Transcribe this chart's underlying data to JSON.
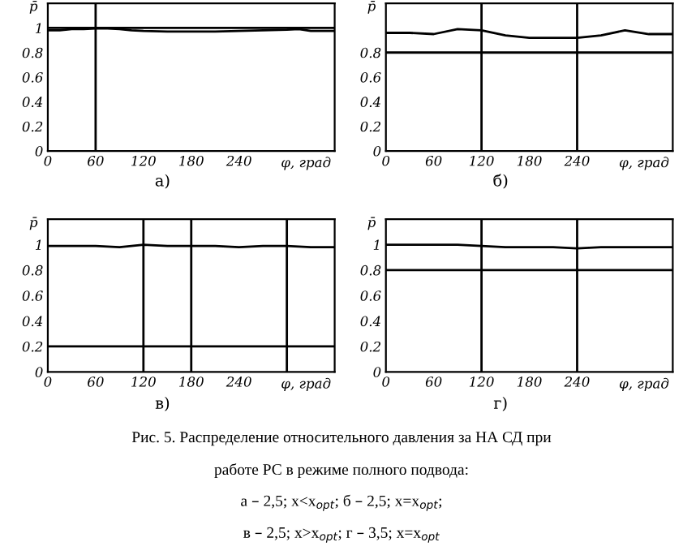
{
  "chart_data": [
    {
      "type": "line",
      "title": "а)",
      "xlabel": "φ, град",
      "ylabel": "p̄",
      "x": [
        0,
        15,
        30,
        45,
        60,
        75,
        90,
        105,
        120,
        150,
        180,
        210,
        240,
        270,
        300,
        315,
        330,
        345,
        360
      ],
      "series": [
        {
          "color": "#000000",
          "values": [
            0.98,
            0.98,
            0.99,
            0.99,
            0.995,
            0.995,
            0.99,
            0.98,
            0.975,
            0.97,
            0.97,
            0.97,
            0.975,
            0.98,
            0.985,
            0.99,
            0.975,
            0.975,
            0.975
          ]
        }
      ],
      "xlim": [
        0,
        360
      ],
      "xticks": [
        0,
        60,
        120,
        180,
        240
      ],
      "ylim": [
        0,
        1.2
      ],
      "yticks": [
        0,
        0.2,
        0.4,
        0.6,
        0.8,
        1
      ],
      "ref_lines": [
        {
          "axis": "x",
          "value": 60,
          "color": "#000000"
        },
        {
          "axis": "y",
          "value": 1,
          "color": "#000000"
        }
      ],
      "grid": false,
      "legend": false,
      "marker": "none",
      "line_style": "solid",
      "annotations": [
        "Рис. 5. Распределение относительного давления за НА СД при",
        "работе РС в режиме полного подвода:",
        "а – 2,5; x<x$_{opt}$; б – 2,5; x=x$_{opt}$;",
        "в – 2,5; x>x$_{opt}$; г – 3,5; x=x$_{opt}$"
      ]
    },
    {
      "type": "line",
      "title": "б)",
      "xlabel": "φ, град",
      "ylabel": "p̄",
      "x": [
        0,
        30,
        60,
        90,
        120,
        150,
        180,
        210,
        240,
        270,
        300,
        330,
        360
      ],
      "series": [
        {
          "color": "#000000",
          "values": [
            0.96,
            0.96,
            0.95,
            0.99,
            0.98,
            0.94,
            0.92,
            0.92,
            0.92,
            0.94,
            0.98,
            0.95,
            0.95
          ]
        }
      ],
      "xlim": [
        0,
        360
      ],
      "xticks": [
        0,
        60,
        120,
        180,
        240
      ],
      "ylim": [
        0,
        1.2
      ],
      "yticks": [
        0,
        0.2,
        0.4,
        0.6,
        0.8
      ],
      "ref_lines": [
        {
          "axis": "x",
          "value": 120,
          "color": "#000000"
        },
        {
          "axis": "x",
          "value": 240,
          "color": "#000000"
        },
        {
          "axis": "y",
          "value": 0.8,
          "color": "#000000"
        }
      ],
      "grid": false,
      "legend": false,
      "marker": "none",
      "line_style": "solid"
    },
    {
      "type": "line",
      "title": "в)",
      "xlabel": "φ, град",
      "ylabel": "p̄",
      "x": [
        0,
        30,
        60,
        90,
        120,
        150,
        180,
        210,
        240,
        270,
        300,
        330,
        360
      ],
      "series": [
        {
          "color": "#000000",
          "values": [
            0.99,
            0.99,
            0.99,
            0.98,
            1.0,
            0.99,
            0.99,
            0.99,
            0.98,
            0.99,
            0.99,
            0.98,
            0.98
          ]
        }
      ],
      "xlim": [
        0,
        360
      ],
      "xticks": [
        0,
        60,
        120,
        180,
        240
      ],
      "ylim": [
        0,
        1.2
      ],
      "yticks": [
        0,
        0.2,
        0.4,
        0.6,
        0.8,
        1
      ],
      "ref_lines": [
        {
          "axis": "x",
          "value": 120,
          "color": "#000000"
        },
        {
          "axis": "x",
          "value": 180,
          "color": "#000000"
        },
        {
          "axis": "x",
          "value": 300,
          "color": "#000000"
        },
        {
          "axis": "y",
          "value": 0.2,
          "color": "#000000"
        }
      ],
      "grid": false,
      "legend": false,
      "marker": "none",
      "line_style": "solid"
    },
    {
      "type": "line",
      "title": "г)",
      "xlabel": "φ, град",
      "ylabel": "p̄",
      "x": [
        0,
        30,
        60,
        90,
        120,
        150,
        180,
        210,
        240,
        270,
        300,
        330,
        360
      ],
      "series": [
        {
          "color": "#000000",
          "values": [
            1.0,
            1.0,
            1.0,
            1.0,
            0.99,
            0.98,
            0.98,
            0.98,
            0.97,
            0.98,
            0.98,
            0.98,
            0.98
          ]
        }
      ],
      "xlim": [
        0,
        360
      ],
      "xticks": [
        0,
        60,
        120,
        180,
        240
      ],
      "ylim": [
        0,
        1.2
      ],
      "yticks": [
        0,
        0.2,
        0.4,
        0.6,
        0.8,
        1
      ],
      "ref_lines": [
        {
          "axis": "x",
          "value": 120,
          "color": "#000000"
        },
        {
          "axis": "x",
          "value": 240,
          "color": "#000000"
        },
        {
          "axis": "y",
          "value": 0.8,
          "color": "#000000"
        }
      ],
      "grid": false,
      "legend": false,
      "marker": "none",
      "line_style": "solid"
    }
  ]
}
